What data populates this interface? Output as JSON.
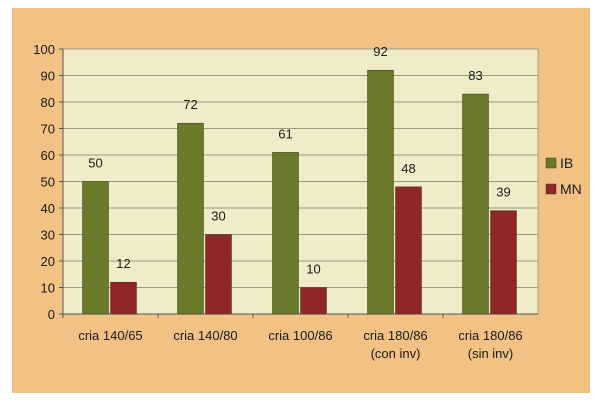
{
  "chart_data": {
    "type": "bar",
    "categories": [
      [
        "cria 140/65"
      ],
      [
        "cria 140/80"
      ],
      [
        "cria 100/86"
      ],
      [
        "cria 180/86",
        "(con inv)"
      ],
      [
        "cria 180/86",
        "(sin inv)"
      ]
    ],
    "series": [
      {
        "name": "IB",
        "values": [
          50,
          72,
          61,
          92,
          83
        ],
        "color": "#6b7a2a"
      },
      {
        "name": "MN",
        "values": [
          12,
          30,
          10,
          48,
          39
        ],
        "color": "#8f2727"
      }
    ],
    "ylim": [
      0,
      100
    ],
    "yticks": [
      0,
      10,
      20,
      30,
      40,
      50,
      60,
      70,
      80,
      90,
      100
    ],
    "grid": true,
    "legend_position": "right",
    "plot_background": "#f0ecc8",
    "page_background": "#f2c285"
  }
}
